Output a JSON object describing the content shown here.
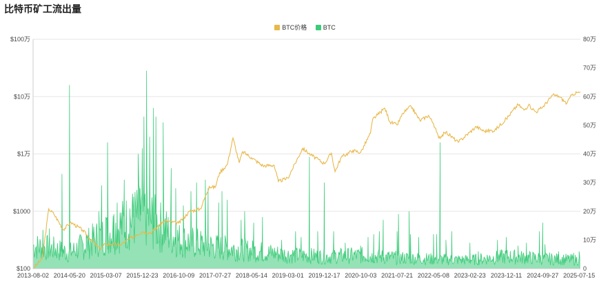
{
  "page": {
    "title": "比特币矿工流出量"
  },
  "colors": {
    "price": "#E8B84A",
    "flow": "#3DCB7A",
    "grid": "#E6E6E6",
    "axis": "#CCCCCC"
  },
  "chart_data": {
    "type": "line",
    "title": "比特币矿工流出量",
    "legend": {
      "placement": "top-center",
      "entries": [
        "BTC价格",
        "BTC"
      ]
    },
    "x_tick_labels": [
      "2013-08-02",
      "2014-05-20",
      "2015-03-07",
      "2015-12-23",
      "2016-10-09",
      "2017-07-27",
      "2018-05-14",
      "2019-03-01",
      "2019-12-17",
      "2020-10-03",
      "2021-07-21",
      "2022-05-08",
      "2023-02-23",
      "2023-12-11",
      "2024-09-27",
      "2025-07-15"
    ],
    "xlim": [
      "2013-08-02",
      "2025-07-25"
    ],
    "y_left": {
      "scale": "log",
      "ylim": [
        100,
        1000000
      ],
      "tick_labels": [
        "$100",
        "$1000",
        "$1万",
        "$10万",
        "$100万"
      ],
      "tick_values": [
        100,
        1000,
        10000,
        100000,
        1000000
      ]
    },
    "y_right": {
      "scale": "linear",
      "ylim": [
        0,
        800000
      ],
      "tick_labels": [
        "0",
        "10万",
        "20万",
        "30万",
        "40万",
        "50万",
        "60万",
        "70万",
        "80万"
      ],
      "tick_values": [
        0,
        100000,
        200000,
        300000,
        400000,
        500000,
        600000,
        700000,
        800000
      ]
    },
    "grid": "horizontal",
    "series": [
      {
        "name": "BTC价格",
        "axis": "left",
        "color": "#E8B84A",
        "points": [
          [
            "2013-08-02",
            100
          ],
          [
            "2013-10-15",
            150
          ],
          [
            "2013-12-05",
            1100
          ],
          [
            "2014-01-15",
            900
          ],
          [
            "2014-04-01",
            480
          ],
          [
            "2014-06-01",
            640
          ],
          [
            "2014-09-01",
            470
          ],
          [
            "2015-01-15",
            220
          ],
          [
            "2015-03-07",
            270
          ],
          [
            "2015-07-01",
            260
          ],
          [
            "2015-11-05",
            390
          ],
          [
            "2015-12-23",
            440
          ],
          [
            "2016-03-01",
            420
          ],
          [
            "2016-06-15",
            680
          ],
          [
            "2016-10-09",
            620
          ],
          [
            "2017-01-05",
            1000
          ],
          [
            "2017-04-01",
            1100
          ],
          [
            "2017-06-10",
            2700
          ],
          [
            "2017-07-27",
            2600
          ],
          [
            "2017-09-01",
            4700
          ],
          [
            "2017-11-01",
            6500
          ],
          [
            "2017-12-17",
            19000
          ],
          [
            "2018-02-05",
            7000
          ],
          [
            "2018-03-05",
            11000
          ],
          [
            "2018-05-14",
            8600
          ],
          [
            "2018-08-14",
            6200
          ],
          [
            "2018-11-10",
            6400
          ],
          [
            "2018-12-15",
            3300
          ],
          [
            "2019-03-01",
            3800
          ],
          [
            "2019-06-26",
            12500
          ],
          [
            "2019-09-01",
            9600
          ],
          [
            "2019-12-17",
            6800
          ],
          [
            "2020-02-12",
            10300
          ],
          [
            "2020-03-12",
            4900
          ],
          [
            "2020-05-01",
            8800
          ],
          [
            "2020-08-01",
            11500
          ],
          [
            "2020-10-03",
            10600
          ],
          [
            "2020-12-20",
            23000
          ],
          [
            "2021-01-08",
            41000
          ],
          [
            "2021-02-15",
            48000
          ],
          [
            "2021-04-14",
            63000
          ],
          [
            "2021-05-25",
            36000
          ],
          [
            "2021-07-21",
            32000
          ],
          [
            "2021-09-05",
            51000
          ],
          [
            "2021-11-10",
            68000
          ],
          [
            "2022-01-20",
            38000
          ],
          [
            "2022-03-28",
            47000
          ],
          [
            "2022-05-08",
            34000
          ],
          [
            "2022-06-18",
            19000
          ],
          [
            "2022-08-15",
            24000
          ],
          [
            "2022-11-21",
            16000
          ],
          [
            "2023-02-23",
            24000
          ],
          [
            "2023-04-14",
            30000
          ],
          [
            "2023-06-15",
            25000
          ],
          [
            "2023-09-10",
            25800
          ],
          [
            "2023-12-11",
            41000
          ],
          [
            "2024-03-14",
            73000
          ],
          [
            "2024-05-01",
            58000
          ],
          [
            "2024-06-05",
            71000
          ],
          [
            "2024-08-05",
            54000
          ],
          [
            "2024-09-27",
            66000
          ],
          [
            "2024-12-17",
            106000
          ],
          [
            "2025-02-01",
            102000
          ],
          [
            "2025-04-08",
            76000
          ],
          [
            "2025-05-22",
            111000
          ],
          [
            "2025-07-15",
            118000
          ],
          [
            "2025-07-25",
            119000
          ]
        ]
      },
      {
        "name": "BTC",
        "axis": "right",
        "color": "#3DCB7A",
        "baseline_envelope": [
          [
            "2013-08-02",
            78000
          ],
          [
            "2014-01-01",
            70000
          ],
          [
            "2014-05-20",
            55000
          ],
          [
            "2015-03-07",
            120000
          ],
          [
            "2015-06-01",
            140000
          ],
          [
            "2015-12-23",
            190000
          ],
          [
            "2016-06-01",
            140000
          ],
          [
            "2016-10-09",
            100000
          ],
          [
            "2017-07-27",
            75000
          ],
          [
            "2018-05-14",
            62000
          ],
          [
            "2019-03-01",
            48000
          ],
          [
            "2019-12-17",
            42000
          ],
          [
            "2020-10-03",
            46000
          ],
          [
            "2021-07-21",
            38000
          ],
          [
            "2022-05-08",
            33000
          ],
          [
            "2023-02-23",
            30000
          ],
          [
            "2023-12-11",
            42000
          ],
          [
            "2024-09-27",
            35000
          ],
          [
            "2025-07-15",
            30000
          ]
        ],
        "spikes": [
          [
            "2013-10-20",
            135000
          ],
          [
            "2013-12-10",
            140000
          ],
          [
            "2014-03-21",
            330000
          ],
          [
            "2014-05-20",
            640000
          ],
          [
            "2014-10-01",
            120000
          ],
          [
            "2015-01-10",
            200000
          ],
          [
            "2015-02-02",
            290000
          ],
          [
            "2015-03-07",
            180000
          ],
          [
            "2015-03-20",
            440000
          ],
          [
            "2015-05-10",
            190000
          ],
          [
            "2015-06-05",
            230000
          ],
          [
            "2015-08-01",
            310000
          ],
          [
            "2015-09-15",
            210000
          ],
          [
            "2015-10-15",
            250000
          ],
          [
            "2015-11-20",
            400000
          ],
          [
            "2015-12-05",
            280000
          ],
          [
            "2015-12-23",
            420000
          ],
          [
            "2016-01-05",
            530000
          ],
          [
            "2016-01-26",
            690000
          ],
          [
            "2016-02-20",
            460000
          ],
          [
            "2016-03-20",
            560000
          ],
          [
            "2016-04-10",
            530000
          ],
          [
            "2016-06-07",
            510000
          ],
          [
            "2016-08-10",
            350000
          ],
          [
            "2016-09-15",
            280000
          ],
          [
            "2016-11-15",
            220000
          ],
          [
            "2017-01-15",
            270000
          ],
          [
            "2017-03-01",
            300000
          ],
          [
            "2017-05-10",
            310000
          ],
          [
            "2017-06-01",
            280000
          ],
          [
            "2017-08-25",
            230000
          ],
          [
            "2017-09-20",
            270000
          ],
          [
            "2017-11-01",
            240000
          ],
          [
            "2018-02-20",
            170000
          ],
          [
            "2018-03-20",
            200000
          ],
          [
            "2018-06-01",
            160000
          ],
          [
            "2018-08-10",
            180000
          ],
          [
            "2019-01-10",
            100000
          ],
          [
            "2019-05-01",
            130000
          ],
          [
            "2019-06-15",
            110000
          ],
          [
            "2019-08-20",
            390000
          ],
          [
            "2019-10-25",
            130000
          ],
          [
            "2019-12-17",
            300000
          ],
          [
            "2020-03-01",
            130000
          ],
          [
            "2020-06-01",
            90000
          ],
          [
            "2020-10-03",
            80000
          ],
          [
            "2020-12-01",
            110000
          ],
          [
            "2021-01-15",
            120000
          ],
          [
            "2021-03-01",
            130000
          ],
          [
            "2021-04-01",
            170000
          ],
          [
            "2021-07-21",
            130000
          ],
          [
            "2021-08-01",
            190000
          ],
          [
            "2021-10-25",
            200000
          ],
          [
            "2021-11-05",
            120000
          ],
          [
            "2022-01-10",
            110000
          ],
          [
            "2022-05-08",
            120000
          ],
          [
            "2022-06-01",
            120000
          ],
          [
            "2022-06-30",
            440000
          ],
          [
            "2022-08-15",
            100000
          ],
          [
            "2022-10-01",
            130000
          ],
          [
            "2023-02-23",
            90000
          ],
          [
            "2023-05-01",
            60000
          ],
          [
            "2023-10-01",
            100000
          ],
          [
            "2023-12-11",
            110000
          ],
          [
            "2024-03-14",
            80000
          ],
          [
            "2024-05-20",
            90000
          ],
          [
            "2024-09-01",
            130000
          ],
          [
            "2024-09-27",
            160000
          ],
          [
            "2024-10-15",
            85000
          ],
          [
            "2025-02-01",
            60000
          ],
          [
            "2025-06-01",
            55000
          ],
          [
            "2025-07-15",
            60000
          ]
        ]
      }
    ]
  }
}
